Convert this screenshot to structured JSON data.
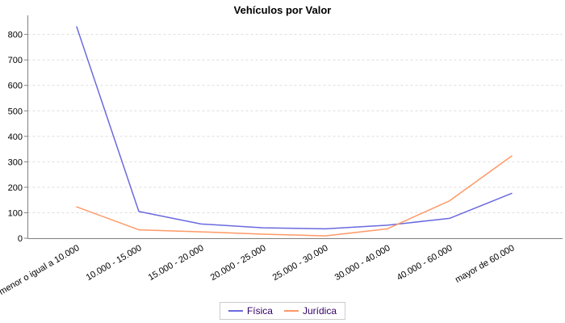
{
  "chart_data": {
    "type": "line",
    "title": "Vehículos por Valor",
    "categories": [
      "menor o igual a 10.000",
      "10.000 - 15.000",
      "15.000 - 20.000",
      "20.000 - 25.000",
      "25.000 - 30.000",
      "30.000 - 40.000",
      "40.000 - 60.000",
      "mayor de 60.000"
    ],
    "series": [
      {
        "name": "Física",
        "color": "#6A6ADF",
        "values": [
          830,
          105,
          56,
          41,
          37,
          51,
          78,
          176
        ]
      },
      {
        "name": "Jurídica",
        "color": "#FF9966",
        "values": [
          123,
          33,
          25,
          16,
          9,
          37,
          147,
          323
        ]
      }
    ],
    "xlabel": "",
    "ylabel": "",
    "ylim": [
      0,
      875
    ],
    "yticks": [
      0,
      100,
      200,
      300,
      400,
      500,
      600,
      700,
      800
    ],
    "grid": "horizontal-dashed",
    "legend_position": "bottom-center",
    "x_label_rotation_deg": -30,
    "colors": {
      "grid": "#dddddd",
      "axis": "#808080",
      "tick_label": "#000000",
      "title": "#000000",
      "legend_text": "#330066",
      "legend_border": "#cccccc",
      "background": "#ffffff"
    }
  }
}
